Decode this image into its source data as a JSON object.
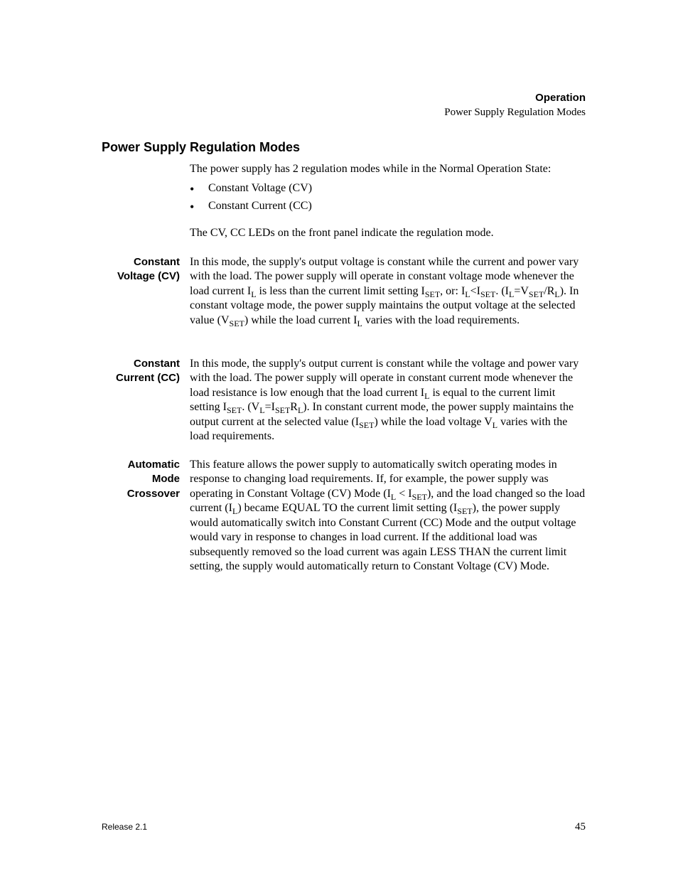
{
  "colors": {
    "text": "#000000",
    "background": "#ffffff"
  },
  "typography": {
    "body_family": "Times New Roman",
    "heading_family": "Arial",
    "body_size_pt": 12,
    "heading_size_pt": 13,
    "label_size_pt": 11,
    "footer_size_pt": 9
  },
  "running_head": {
    "chapter": "Operation",
    "section": "Power Supply Regulation Modes"
  },
  "section_title": "Power Supply Regulation Modes",
  "intro": "The power supply has 2 regulation modes while in the Normal Operation State:",
  "bullets": [
    "Constant Voltage (CV)",
    "Constant Current (CC)"
  ],
  "after_bullets": "The CV, CC LEDs on the front panel indicate the regulation mode.",
  "entries": {
    "cv": {
      "label_lines": [
        "Constant",
        "Voltage (CV)"
      ],
      "html": "In this mode, the supply's output voltage is constant while the current and power vary with the load. The power supply will operate in constant voltage mode whenever the load current I<span class=\"sub\">L</span> is less than the current limit setting I<span class=\"sub\">SET</span>, or: I<span class=\"sub\">L</span>&lt;I<span class=\"sub\">SET</span>. (I<span class=\"sub\">L</span>=V<span class=\"sub\">SET</span>/R<span class=\"sub\">L</span>). In constant voltage mode, the power supply maintains the output voltage at the selected value (V<span class=\"sub\">SET</span>) while the load current I<span class=\"sub\">L</span> varies with the load requirements."
    },
    "cc": {
      "label_lines": [
        "Constant",
        "Current (CC)"
      ],
      "html": "In this mode, the supply's output current is constant while the voltage and power vary with the load. The power supply will operate in constant current mode whenever the load resistance is low enough that the load current I<span class=\"sub\">L</span> is equal to the current limit setting I<span class=\"sub\">SET</span>. (V<span class=\"sub\">L</span>=I<span class=\"sub\">SET</span>R<span class=\"sub\">L</span>). In constant current mode, the power supply maintains the output current at the selected value (I<span class=\"sub\">SET</span>) while the load voltage V<span class=\"sub\">L</span> varies with the load requirements."
    },
    "auto": {
      "label_lines": [
        "Automatic",
        "Mode",
        "Crossover"
      ],
      "html": "This feature allows the power supply to automatically switch operating modes in response to changing load requirements. If, for example, the power supply was operating in Constant Voltage (CV) Mode (I<span class=\"sub\">L</span> &lt; I<span class=\"sub\">SET</span>), and the load changed so the load current (I<span class=\"sub\">L</span>) became EQUAL TO the current limit setting (I<span class=\"sub\">SET</span>), the power supply would automatically switch into Constant Current (CC) Mode and the output voltage would vary in response to changes in load current. If the additional load was subsequently removed so the load current was again LESS THAN the current limit setting, the supply would automatically return to Constant Voltage (CV) Mode."
    }
  },
  "footer": {
    "release": "Release 2.1",
    "page": "45"
  }
}
